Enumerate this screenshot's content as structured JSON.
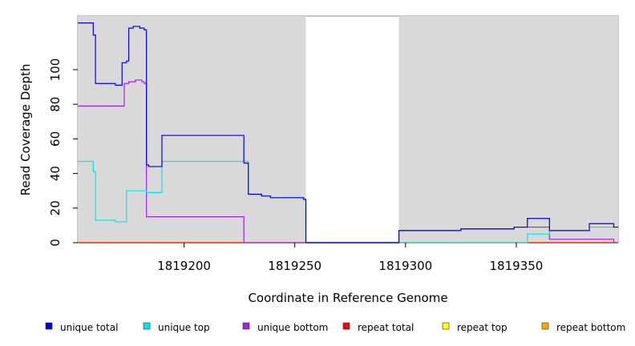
{
  "chart_data": {
    "type": "line",
    "title": "",
    "xlabel": "Coordinate in Reference Genome",
    "ylabel": "Read Coverage Depth",
    "xlim": [
      1819152,
      1819396
    ],
    "ylim": [
      0,
      131
    ],
    "x_ticks": [
      1819200,
      1819250,
      1819300,
      1819350
    ],
    "y_ticks": [
      0,
      20,
      40,
      60,
      80,
      100
    ],
    "shaded_regions": [
      [
        1819152,
        1819255
      ],
      [
        1819297,
        1819396
      ]
    ],
    "grid": false,
    "legend_position": "bottom",
    "series": [
      {
        "name": "unique total",
        "color": "#0000ee",
        "points": [
          [
            1819152,
            127
          ],
          [
            1819159,
            127
          ],
          [
            1819159,
            120
          ],
          [
            1819160,
            120
          ],
          [
            1819160,
            92
          ],
          [
            1819169,
            92
          ],
          [
            1819169,
            91
          ],
          [
            1819172,
            91
          ],
          [
            1819172,
            104
          ],
          [
            1819174,
            104
          ],
          [
            1819174,
            105
          ],
          [
            1819175,
            105
          ],
          [
            1819175,
            124
          ],
          [
            1819177,
            124
          ],
          [
            1819177,
            125
          ],
          [
            1819180,
            125
          ],
          [
            1819180,
            124
          ],
          [
            1819182,
            124
          ],
          [
            1819182,
            123
          ],
          [
            1819183,
            123
          ],
          [
            1819183,
            45
          ],
          [
            1819184,
            45
          ],
          [
            1819184,
            44
          ],
          [
            1819190,
            44
          ],
          [
            1819190,
            62
          ],
          [
            1819227,
            62
          ],
          [
            1819227,
            46
          ],
          [
            1819229,
            46
          ],
          [
            1819229,
            28
          ],
          [
            1819235,
            28
          ],
          [
            1819235,
            27
          ],
          [
            1819239,
            27
          ],
          [
            1819239,
            26
          ],
          [
            1819254,
            26
          ],
          [
            1819254,
            25
          ],
          [
            1819255,
            25
          ],
          [
            1819255,
            0
          ],
          [
            1819297,
            0
          ],
          [
            1819297,
            7
          ],
          [
            1819325,
            7
          ],
          [
            1819325,
            8
          ],
          [
            1819349,
            8
          ],
          [
            1819349,
            9
          ],
          [
            1819355,
            9
          ],
          [
            1819355,
            14
          ],
          [
            1819365,
            14
          ],
          [
            1819365,
            7
          ],
          [
            1819383,
            7
          ],
          [
            1819383,
            11
          ],
          [
            1819394,
            11
          ],
          [
            1819394,
            9
          ],
          [
            1819396,
            9
          ]
        ]
      },
      {
        "name": "unique top",
        "color": "#00e5ee",
        "points": [
          [
            1819152,
            47
          ],
          [
            1819159,
            47
          ],
          [
            1819159,
            41
          ],
          [
            1819160,
            41
          ],
          [
            1819160,
            13
          ],
          [
            1819169,
            13
          ],
          [
            1819169,
            12
          ],
          [
            1819174,
            12
          ],
          [
            1819174,
            30
          ],
          [
            1819183,
            30
          ],
          [
            1819183,
            29
          ],
          [
            1819190,
            29
          ],
          [
            1819190,
            47
          ],
          [
            1819229,
            47
          ],
          [
            1819229,
            28
          ],
          [
            1819235,
            28
          ],
          [
            1819235,
            27
          ],
          [
            1819239,
            27
          ],
          [
            1819239,
            26
          ],
          [
            1819254,
            26
          ],
          [
            1819254,
            25
          ],
          [
            1819255,
            25
          ],
          [
            1819255,
            0
          ],
          [
            1819355,
            0
          ],
          [
            1819355,
            5
          ],
          [
            1819365,
            5
          ],
          [
            1819365,
            7
          ],
          [
            1819383,
            7
          ],
          [
            1819383,
            9
          ],
          [
            1819396,
            9
          ]
        ]
      },
      {
        "name": "unique bottom",
        "color": "#a020f0",
        "points": [
          [
            1819152,
            79
          ],
          [
            1819173,
            79
          ],
          [
            1819173,
            92
          ],
          [
            1819175,
            92
          ],
          [
            1819175,
            93
          ],
          [
            1819178,
            93
          ],
          [
            1819178,
            94
          ],
          [
            1819181,
            94
          ],
          [
            1819181,
            93
          ],
          [
            1819182,
            93
          ],
          [
            1819182,
            92
          ],
          [
            1819183,
            92
          ],
          [
            1819183,
            15
          ],
          [
            1819227,
            15
          ],
          [
            1819227,
            0
          ],
          [
            1819297,
            0
          ],
          [
            1819297,
            7
          ],
          [
            1819325,
            7
          ],
          [
            1819325,
            8
          ],
          [
            1819349,
            8
          ],
          [
            1819349,
            9
          ],
          [
            1819365,
            9
          ],
          [
            1819365,
            2
          ],
          [
            1819394,
            2
          ],
          [
            1819394,
            0
          ],
          [
            1819396,
            0
          ]
        ]
      },
      {
        "name": "repeat total",
        "color": "#ff0000",
        "points": [
          [
            1819152,
            0
          ],
          [
            1819396,
            0
          ]
        ]
      },
      {
        "name": "repeat top",
        "color": "#ffff00",
        "points": [
          [
            1819152,
            0
          ],
          [
            1819396,
            0
          ]
        ]
      },
      {
        "name": "repeat bottom",
        "color": "#ffa500",
        "points": [
          [
            1819152,
            0
          ],
          [
            1819255,
            0
          ],
          [
            1819297,
            0
          ],
          [
            1819396,
            0
          ]
        ]
      }
    ]
  }
}
